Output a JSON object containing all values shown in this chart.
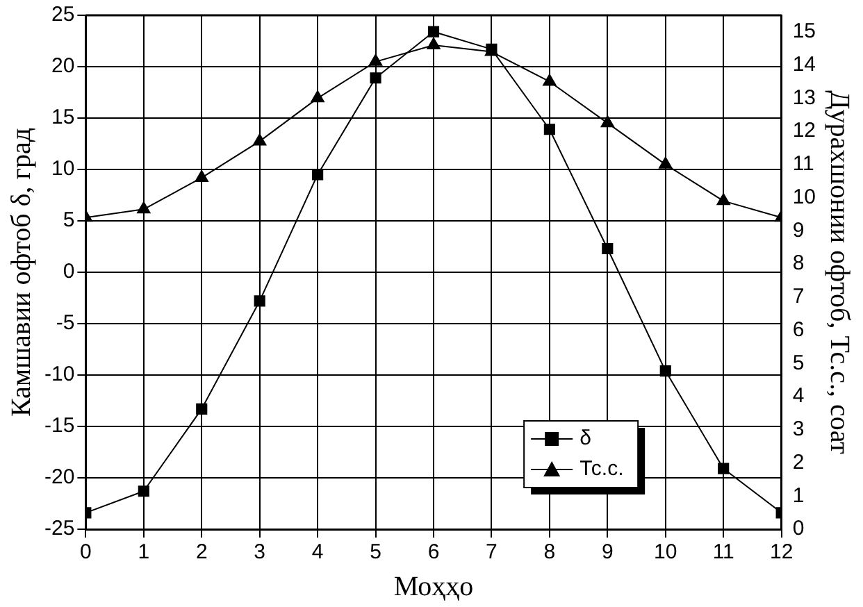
{
  "chart_data": {
    "type": "line",
    "xlabel": "Моҳҳо",
    "ylabel": "Камшавии офтоб δ, град",
    "y2label": "Дурахшонии офтоб, Тс.с., соат",
    "x": [
      0,
      1,
      2,
      3,
      4,
      5,
      6,
      7,
      8,
      9,
      10,
      11,
      12
    ],
    "xlim": [
      0,
      12
    ],
    "xticks": [
      0,
      1,
      2,
      3,
      4,
      5,
      6,
      7,
      8,
      9,
      10,
      11,
      12
    ],
    "ylim": [
      -25,
      25
    ],
    "yticks": [
      -25,
      -20,
      -15,
      -10,
      -5,
      0,
      5,
      10,
      15,
      20,
      25
    ],
    "y2lim": [
      0,
      15.5
    ],
    "y2ticks": [
      0,
      1,
      2,
      3,
      4,
      5,
      6,
      7,
      8,
      9,
      10,
      11,
      12,
      13,
      14,
      15
    ],
    "grid": true,
    "legend": "bottom right",
    "line_style": "solid",
    "series": [
      {
        "name": "δ",
        "color": "#000000",
        "marker": "square",
        "values": [
          -23.4,
          -21.3,
          -13.3,
          -2.8,
          9.5,
          18.9,
          23.4,
          21.7,
          13.9,
          2.3,
          -9.6,
          -19.1,
          -23.4
        ]
      },
      {
        "name": "Тс.с.",
        "color": "#000000",
        "marker": "triangle",
        "axis": "y2",
        "values": [
          9.4,
          9.65,
          10.6,
          11.7,
          13.0,
          14.1,
          14.6,
          14.4,
          13.5,
          12.25,
          11.0,
          9.9,
          9.4
        ]
      }
    ]
  }
}
